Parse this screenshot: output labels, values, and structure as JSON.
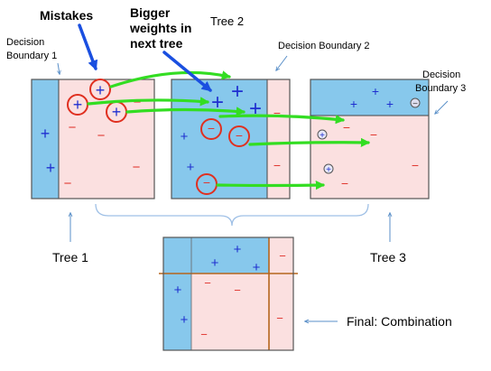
{
  "labels": {
    "mistakes": "Mistakes",
    "bigger_weights_line1": "Bigger",
    "bigger_weights_line2": "weights in",
    "bigger_weights_line3": "next tree",
    "tree2_top": "Tree 2",
    "db1_line1": "Decision",
    "db1_line2": "Boundary 1",
    "db2": "Decision Boundary 2",
    "db3_line1": "Decision",
    "db3_line2": "Boundary 3",
    "tree1": "Tree 1",
    "tree3": "Tree 3",
    "final": "Final: Combination"
  },
  "symbols": {
    "plus": "+",
    "minus": "−"
  },
  "colors": {
    "blue_region": "#87c8ec",
    "pink_region": "#fbe0e0",
    "plus": "#1f2fd0",
    "minus": "#e0342c",
    "arrow_green": "#33dd22",
    "arrow_blue": "#1a4fe0",
    "circle": "#e03020",
    "frame": "#555555",
    "boundary_line": "#b5651d"
  }
}
